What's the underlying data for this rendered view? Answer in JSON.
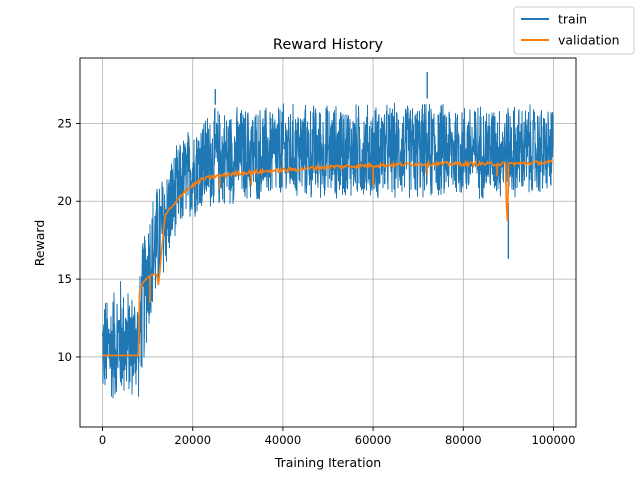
{
  "chart_data": {
    "type": "line",
    "title": "Reward History",
    "xlabel": "Training Iteration",
    "ylabel": "Reward",
    "xlim": [
      -5000,
      105000
    ],
    "ylim": [
      5.5,
      29.2
    ],
    "xticks": [
      0,
      20000,
      40000,
      60000,
      80000,
      100000
    ],
    "xtick_labels": [
      "0",
      "20000",
      "40000",
      "60000",
      "80000",
      "100000"
    ],
    "yticks": [
      10,
      15,
      20,
      25
    ],
    "ytick_labels": [
      "10",
      "15",
      "20",
      "25"
    ],
    "grid": true,
    "legend_position": "top-right (outside axes)",
    "colors": {
      "train": "#1f77b4",
      "validation": "#ff7f0e",
      "grid": "#b0b0b0"
    },
    "series": [
      {
        "name": "train",
        "note_style": "noisy band (envelope shown as low/high)",
        "x": [
          0,
          2000,
          4000,
          6000,
          8000,
          9000,
          10000,
          12000,
          14000,
          16000,
          18000,
          20000,
          22000,
          25000,
          30000,
          40000,
          50000,
          60000,
          70000,
          80000,
          90000,
          100000
        ],
        "low": [
          7.0,
          6.8,
          6.9,
          7.0,
          7.1,
          8.8,
          11.0,
          13.0,
          15.2,
          17.0,
          18.2,
          18.6,
          19.0,
          19.3,
          19.6,
          19.8,
          19.9,
          19.9,
          19.9,
          19.9,
          19.9,
          20.0
        ],
        "high": [
          14.0,
          14.5,
          15.5,
          14.5,
          14.8,
          18.0,
          20.0,
          21.5,
          22.5,
          23.5,
          24.5,
          25.3,
          25.8,
          26.2,
          26.3,
          26.5,
          26.5,
          26.5,
          26.6,
          26.6,
          26.5,
          26.3
        ],
        "spikes": [
          {
            "x": 25000,
            "high": 27.2
          },
          {
            "x": 72000,
            "high": 28.3
          },
          {
            "x": 90000,
            "low": 16.3
          }
        ]
      },
      {
        "name": "validation",
        "x": [
          0,
          8000,
          8200,
          9000,
          10000,
          11000,
          12000,
          12500,
          13000,
          13500,
          14000,
          16000,
          18000,
          20000,
          22000,
          25000,
          30000,
          40000,
          50000,
          60000,
          70000,
          80000,
          89500,
          89700,
          90000,
          100000
        ],
        "y": [
          10.1,
          10.1,
          14.2,
          14.8,
          15.1,
          15.3,
          15.3,
          14.6,
          16.5,
          18.0,
          19.2,
          19.8,
          20.6,
          21.0,
          21.4,
          21.6,
          21.8,
          22.0,
          22.2,
          22.3,
          22.4,
          22.4,
          22.4,
          16.5,
          22.4,
          22.5
        ],
        "dips": [
          {
            "x": 10500,
            "y": 13.5
          },
          {
            "x": 26000,
            "y": 20.8
          },
          {
            "x": 33000,
            "y": 21.0
          },
          {
            "x": 60000,
            "y": 21.0
          },
          {
            "x": 72000,
            "y": 21.7
          },
          {
            "x": 87500,
            "y": 21.6
          }
        ]
      }
    ]
  }
}
